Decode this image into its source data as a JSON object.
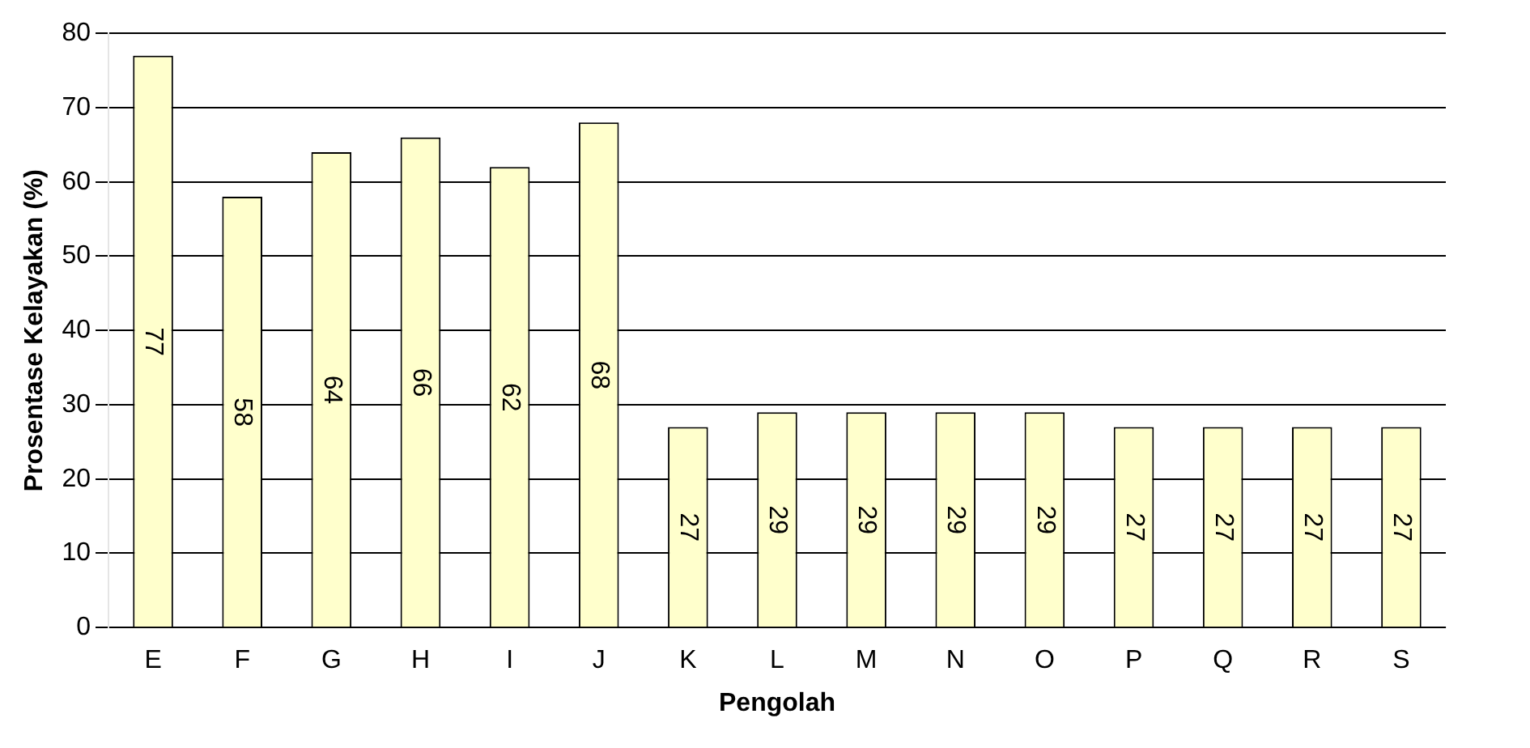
{
  "chart_data": {
    "type": "bar",
    "xlabel": "Pengolah",
    "ylabel": "Prosentase Kelayakan (%)",
    "categories": [
      "E",
      "F",
      "G",
      "H",
      "I",
      "J",
      "K",
      "L",
      "M",
      "N",
      "O",
      "P",
      "Q",
      "R",
      "S"
    ],
    "values": [
      77,
      58,
      64,
      66,
      62,
      68,
      27,
      29,
      29,
      29,
      29,
      27,
      27,
      27,
      27
    ],
    "color": "#ffffcc",
    "ylim": [
      0,
      80
    ],
    "yticks": [
      0,
      10,
      20,
      30,
      40,
      50,
      60,
      70,
      80
    ],
    "grid": "y",
    "legend": false,
    "data_labels": true
  }
}
